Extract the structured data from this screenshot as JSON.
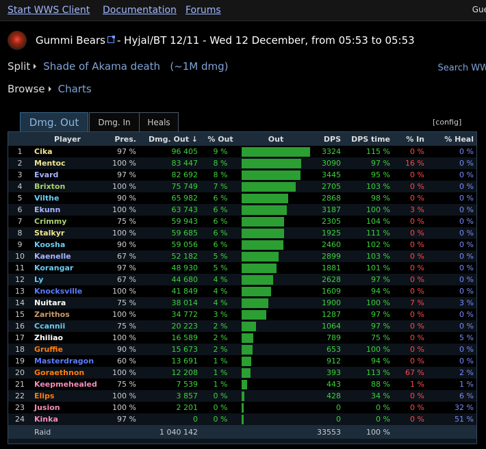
{
  "nav": {
    "start": "Start WWS Client",
    "docs": "Documentation",
    "forums": "Forums",
    "guest": "Gue"
  },
  "header": {
    "guild": "Gummi Bears",
    "raid_info": " - Hyjal/BT 12/11 - Wed 12 December, from 05:53 to 05:53"
  },
  "breadcrumb": {
    "split": "Split",
    "split_target": "Shade of Akama death",
    "split_dmg": "(~1M dmg)",
    "browse": "Browse",
    "browse_target": "Charts"
  },
  "search": {
    "label": "Search WW"
  },
  "tabs": [
    {
      "label": "Dmg. Out"
    },
    {
      "label": "Dmg. In"
    },
    {
      "label": "Heals"
    }
  ],
  "config": "[config]",
  "columns": [
    "",
    "Player",
    "Pres.",
    "Dmg. Out ↓",
    "% Out",
    "Out",
    "DPS",
    "DPS time",
    "% In",
    "% Heal"
  ],
  "colors": {
    "bar": "#2b9f32",
    "dps_green": "#3cd23c",
    "in_red": "#ff4a4a",
    "heal_blue": "#7b8cff"
  },
  "rows": [
    {
      "rank": "1",
      "name": "Cika",
      "color": "#f0e68c",
      "pres": "97 %",
      "dmg": "96 405",
      "pct": "9 %",
      "value": 96405,
      "dps": "3324",
      "time": "115 %",
      "in": "0 %",
      "heal": "0 %"
    },
    {
      "rank": "2",
      "name": "Mentoc",
      "color": "#f0e68c",
      "pres": "100 %",
      "dmg": "83 447",
      "pct": "8 %",
      "value": 83447,
      "dps": "3090",
      "time": "97 %",
      "in": "16 %",
      "heal": "0 %"
    },
    {
      "rank": "3",
      "name": "Evard",
      "color": "#a8b4ff",
      "pres": "97 %",
      "dmg": "82 692",
      "pct": "8 %",
      "value": 82692,
      "dps": "3445",
      "time": "95 %",
      "in": "0 %",
      "heal": "0 %"
    },
    {
      "rank": "4",
      "name": "Brixton",
      "color": "#a9d271",
      "pres": "100 %",
      "dmg": "75 749",
      "pct": "7 %",
      "value": 75749,
      "dps": "2705",
      "time": "103 %",
      "in": "0 %",
      "heal": "0 %"
    },
    {
      "rank": "5",
      "name": "Vilthe",
      "color": "#69ccf0",
      "pres": "90 %",
      "dmg": "65 982",
      "pct": "6 %",
      "value": 65982,
      "dps": "2868",
      "time": "98 %",
      "in": "0 %",
      "heal": "0 %"
    },
    {
      "rank": "6",
      "name": "Ekunn",
      "color": "#a8b4ff",
      "pres": "100 %",
      "dmg": "63 743",
      "pct": "6 %",
      "value": 63743,
      "dps": "3187",
      "time": "100 %",
      "in": "3 %",
      "heal": "0 %"
    },
    {
      "rank": "7",
      "name": "Crimmy",
      "color": "#a9d271",
      "pres": "75 %",
      "dmg": "59 943",
      "pct": "6 %",
      "value": 59943,
      "dps": "2305",
      "time": "104 %",
      "in": "0 %",
      "heal": "0 %"
    },
    {
      "rank": "8",
      "name": "Stalkyr",
      "color": "#f0e68c",
      "pres": "100 %",
      "dmg": "59 685",
      "pct": "6 %",
      "value": 59685,
      "dps": "1925",
      "time": "111 %",
      "in": "0 %",
      "heal": "0 %"
    },
    {
      "rank": "9",
      "name": "Koosha",
      "color": "#69ccf0",
      "pres": "90 %",
      "dmg": "59 056",
      "pct": "6 %",
      "value": 59056,
      "dps": "2460",
      "time": "102 %",
      "in": "0 %",
      "heal": "0 %"
    },
    {
      "rank": "10",
      "name": "Kaenelle",
      "color": "#a8b4ff",
      "pres": "67 %",
      "dmg": "52 182",
      "pct": "5 %",
      "value": 52182,
      "dps": "2899",
      "time": "103 %",
      "in": "0 %",
      "heal": "0 %"
    },
    {
      "rank": "11",
      "name": "Korangar",
      "color": "#69ccf0",
      "pres": "97 %",
      "dmg": "48 930",
      "pct": "5 %",
      "value": 48930,
      "dps": "1881",
      "time": "101 %",
      "in": "0 %",
      "heal": "0 %"
    },
    {
      "rank": "12",
      "name": "Ly",
      "color": "#69ccf0",
      "pres": "67 %",
      "dmg": "44 680",
      "pct": "4 %",
      "value": 44680,
      "dps": "2628",
      "time": "97 %",
      "in": "0 %",
      "heal": "0 %"
    },
    {
      "rank": "13",
      "name": "Knocksville",
      "color": "#5b7cff",
      "pres": "100 %",
      "dmg": "41 849",
      "pct": "4 %",
      "value": 41849,
      "dps": "1609",
      "time": "94 %",
      "in": "0 %",
      "heal": "0 %"
    },
    {
      "rank": "14",
      "name": "Nuitara",
      "color": "#ffffff",
      "pres": "75 %",
      "dmg": "38 014",
      "pct": "4 %",
      "value": 38014,
      "dps": "1900",
      "time": "100 %",
      "in": "7 %",
      "heal": "3 %"
    },
    {
      "rank": "15",
      "name": "Zarithos",
      "color": "#c79c6e",
      "pres": "100 %",
      "dmg": "34 772",
      "pct": "3 %",
      "value": 34772,
      "dps": "1287",
      "time": "97 %",
      "in": "0 %",
      "heal": "0 %"
    },
    {
      "rank": "16",
      "name": "Ccannii",
      "color": "#69ccf0",
      "pres": "75 %",
      "dmg": "20 223",
      "pct": "2 %",
      "value": 20223,
      "dps": "1064",
      "time": "97 %",
      "in": "0 %",
      "heal": "0 %"
    },
    {
      "rank": "17",
      "name": "Zhiliao",
      "color": "#ffffff",
      "pres": "100 %",
      "dmg": "16 589",
      "pct": "2 %",
      "value": 16589,
      "dps": "789",
      "time": "75 %",
      "in": "0 %",
      "heal": "5 %"
    },
    {
      "rank": "18",
      "name": "Gruffie",
      "color": "#ff7d0a",
      "pres": "90 %",
      "dmg": "15 673",
      "pct": "2 %",
      "value": 15673,
      "dps": "653",
      "time": "100 %",
      "in": "0 %",
      "heal": "0 %"
    },
    {
      "rank": "19",
      "name": "Masterdragon",
      "color": "#5b7cff",
      "pres": "60 %",
      "dmg": "13 691",
      "pct": "1 %",
      "value": 13691,
      "dps": "912",
      "time": "94 %",
      "in": "0 %",
      "heal": "0 %"
    },
    {
      "rank": "20",
      "name": "Goraethnon",
      "color": "#ff7d0a",
      "pres": "100 %",
      "dmg": "12 208",
      "pct": "1 %",
      "value": 12208,
      "dps": "393",
      "time": "113 %",
      "in": "67 %",
      "heal": "2 %"
    },
    {
      "rank": "21",
      "name": "Keepmehealed",
      "color": "#f58cba",
      "pres": "75 %",
      "dmg": "7 539",
      "pct": "1 %",
      "value": 7539,
      "dps": "443",
      "time": "88 %",
      "in": "1 %",
      "heal": "1 %"
    },
    {
      "rank": "22",
      "name": "Elips",
      "color": "#ff7d0a",
      "pres": "100 %",
      "dmg": "3 857",
      "pct": "0 %",
      "value": 3857,
      "dps": "428",
      "time": "34 %",
      "in": "0 %",
      "heal": "6 %"
    },
    {
      "rank": "23",
      "name": "Jusion",
      "color": "#f58cba",
      "pres": "100 %",
      "dmg": "2 201",
      "pct": "0 %",
      "value": 2201,
      "dps": "0",
      "time": "0 %",
      "in": "0 %",
      "heal": "32 %"
    },
    {
      "rank": "24",
      "name": "Kinka",
      "color": "#f58cba",
      "pres": "97 %",
      "dmg": "0",
      "pct": "0 %",
      "value": 0,
      "dps": "0",
      "time": "0 %",
      "in": "0 %",
      "heal": "51 %"
    }
  ],
  "footer": {
    "label": "Raid",
    "dmg": "1 040 142",
    "dps": "33553",
    "time": "100 %"
  }
}
